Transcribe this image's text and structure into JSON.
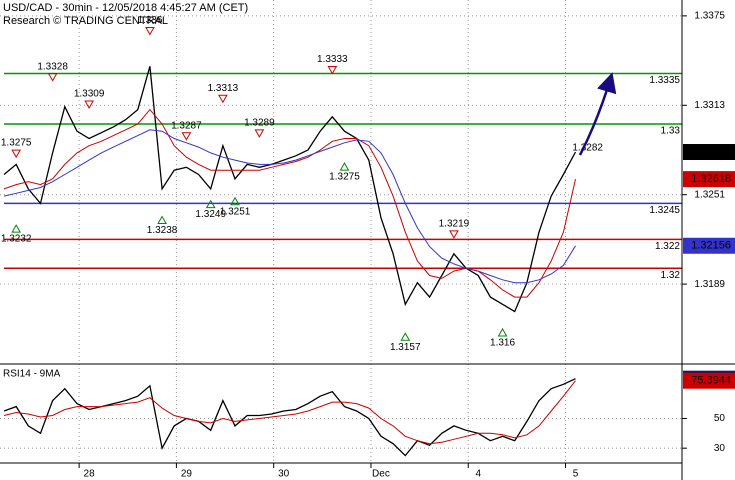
{
  "chart_data": [
    {
      "type": "line",
      "title": "USD/CAD - 30min - 12/05/2018 4:45:27 AM (CET)",
      "subtitle": "Research © TRADING CENTRAL",
      "categories": [
        null,
        null,
        null,
        null,
        null,
        null,
        null,
        "28",
        null,
        null,
        null,
        null,
        null,
        null,
        null,
        "29",
        null,
        null,
        null,
        null,
        null,
        null,
        null,
        "30",
        null,
        null,
        null,
        null,
        null,
        null,
        null,
        "Dec",
        null,
        null,
        null,
        null,
        null,
        null,
        null,
        "4",
        null,
        null,
        null,
        null,
        null,
        null,
        null,
        "5",
        null,
        null,
        null,
        null,
        null,
        null,
        null,
        null
      ],
      "series": [
        {
          "color": "#000000",
          "values": [
            1.3265,
            1.3272,
            1.3255,
            1.3245,
            1.328,
            1.3312,
            1.3295,
            1.329,
            1.3294,
            1.3298,
            1.3303,
            1.331,
            1.334,
            1.3255,
            1.3268,
            1.327,
            1.3265,
            1.3255,
            1.3285,
            1.3262,
            1.3272,
            1.327,
            1.3272,
            1.3275,
            1.3278,
            1.3282,
            1.3295,
            1.3305,
            1.3295,
            1.329,
            1.3275,
            1.3235,
            1.321,
            1.3175,
            1.319,
            1.318,
            1.3195,
            1.321,
            1.32,
            1.3195,
            1.318,
            1.3175,
            1.317,
            1.319,
            1.3225,
            1.325,
            1.3265,
            1.32806,
            null,
            null,
            null,
            null,
            null,
            null,
            null,
            null
          ]
        },
        {
          "color": "#cc0000",
          "values": [
            1.3255,
            1.3258,
            1.326,
            1.3258,
            1.3262,
            1.3272,
            1.328,
            1.3285,
            1.3288,
            1.3292,
            1.3296,
            1.33,
            1.331,
            1.33,
            1.3285,
            1.3277,
            1.3272,
            1.3268,
            1.3268,
            1.3268,
            1.3268,
            1.3268,
            1.327,
            1.3272,
            1.3274,
            1.3277,
            1.3282,
            1.3288,
            1.329,
            1.329,
            1.3285,
            1.327,
            1.325,
            1.3225,
            1.3205,
            1.3195,
            1.3193,
            1.3198,
            1.32,
            1.3198,
            1.3192,
            1.3185,
            1.318,
            1.318,
            1.319,
            1.3205,
            1.3225,
            1.32618,
            null,
            null,
            null,
            null,
            null,
            null,
            null,
            null
          ]
        },
        {
          "color": "#3333cc",
          "values": [
            1.325,
            1.3252,
            1.3254,
            1.3256,
            1.326,
            1.3265,
            1.327,
            1.3275,
            1.328,
            1.3284,
            1.3288,
            1.3292,
            1.3296,
            1.3295,
            1.329,
            1.3287,
            1.3284,
            1.328,
            1.3277,
            1.3275,
            1.3273,
            1.3272,
            1.3272,
            1.3273,
            1.3275,
            1.3278,
            1.3281,
            1.3284,
            1.3287,
            1.3289,
            1.3288,
            1.328,
            1.3265,
            1.3245,
            1.3228,
            1.3215,
            1.3207,
            1.3203,
            1.32,
            1.3198,
            1.3195,
            1.3192,
            1.319,
            1.319,
            1.3192,
            1.3196,
            1.3202,
            1.32156,
            null,
            null,
            null,
            null,
            null,
            null,
            null,
            null
          ]
        }
      ],
      "ylim": [
        1.3135,
        1.3386
      ],
      "yticks": [
        1.3189,
        1.3251,
        1.3313,
        1.3375
      ],
      "grid": true,
      "levels": [
        {
          "value": 1.3335,
          "color": "#009900"
        },
        {
          "value": 1.33,
          "color": "#009900"
        },
        {
          "value": 1.3245,
          "color": "#3333cc"
        },
        {
          "value": 1.322,
          "color": "#cc0000"
        },
        {
          "value": 1.32,
          "color": "#cc0000"
        }
      ],
      "annotations": [
        {
          "at": 1,
          "value": 1.3275,
          "kind": "high"
        },
        {
          "at": 1,
          "value": 1.3232,
          "kind": "low"
        },
        {
          "at": 4,
          "value": 1.3328,
          "kind": "high"
        },
        {
          "at": 7,
          "value": 1.3309,
          "kind": "high"
        },
        {
          "at": 12,
          "value": 1.336,
          "kind": "high"
        },
        {
          "at": 13,
          "value": 1.3238,
          "kind": "low"
        },
        {
          "at": 15,
          "value": 1.3287,
          "kind": "high"
        },
        {
          "at": 17,
          "value": 1.3249,
          "kind": "low"
        },
        {
          "at": 18,
          "value": 1.3313,
          "kind": "high"
        },
        {
          "at": 19,
          "value": 1.3251,
          "kind": "low"
        },
        {
          "at": 21,
          "value": 1.3289,
          "kind": "high"
        },
        {
          "at": 27,
          "value": 1.3333,
          "kind": "high"
        },
        {
          "at": 28,
          "value": 1.3275,
          "kind": "low"
        },
        {
          "at": 33,
          "value": 1.3157,
          "kind": "low"
        },
        {
          "at": 37,
          "value": 1.3219,
          "kind": "high"
        },
        {
          "at": 41,
          "value": 1.316,
          "kind": "low"
        },
        {
          "at": 48,
          "value": 1.3282,
          "kind": "note"
        }
      ]
    },
    {
      "type": "line",
      "title": "RSI14 - 9MA",
      "series": [
        {
          "color": "#000000",
          "values": [
            55,
            58,
            45,
            40,
            62,
            70,
            60,
            56,
            58,
            60,
            62,
            65,
            72,
            30,
            45,
            50,
            48,
            42,
            62,
            45,
            52,
            52,
            53,
            55,
            56,
            60,
            65,
            68,
            58,
            55,
            50,
            38,
            33,
            25,
            35,
            32,
            40,
            45,
            42,
            40,
            35,
            38,
            35,
            48,
            62,
            70,
            73,
            76.7695,
            null,
            null,
            null,
            null,
            null,
            null,
            null,
            null
          ]
        },
        {
          "color": "#cc0000",
          "values": [
            52,
            54,
            53,
            51,
            52,
            56,
            58,
            58,
            58,
            59,
            60,
            61,
            64,
            57,
            52,
            50,
            48,
            47,
            50,
            48,
            49,
            50,
            51,
            52,
            53,
            55,
            58,
            61,
            61,
            60,
            57,
            50,
            45,
            38,
            35,
            33,
            34,
            36,
            38,
            40,
            40,
            39,
            37,
            39,
            45,
            55,
            65,
            75.3944,
            null,
            null,
            null,
            null,
            null,
            null,
            null,
            null
          ]
        }
      ],
      "ylim": [
        20.7,
        85.3
      ],
      "yticks": [
        30,
        50
      ],
      "grid": true
    }
  ]
}
